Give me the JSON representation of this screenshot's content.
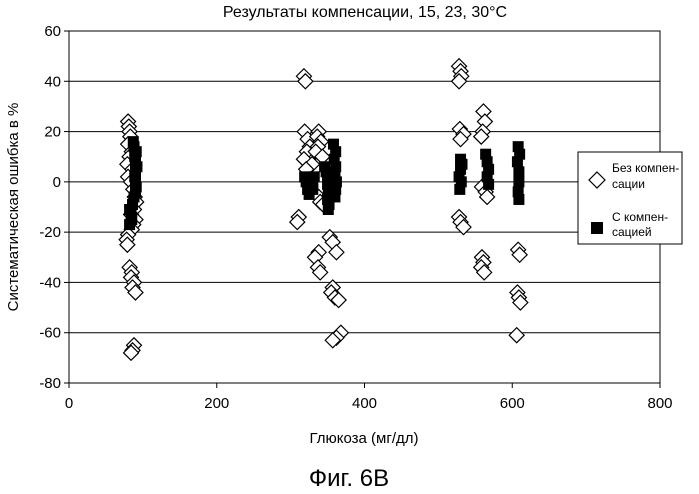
{
  "figure_label": "Фиг. 6В",
  "chart_data": {
    "type": "scatter",
    "title": "Результаты компенсации, 15, 23, 30°C",
    "xlabel": "Глюкоза (мг/дл)",
    "ylabel": "Систематическая ошибка в %",
    "xlim": [
      0,
      800
    ],
    "ylim": [
      -80,
      60
    ],
    "xticks": [
      "0",
      "200",
      "400",
      "600",
      "800"
    ],
    "yticks": [
      "60",
      "40",
      "20",
      "0",
      "-20",
      "-40",
      "-60",
      "-80"
    ],
    "grid": "horizontal",
    "legend_position": "right",
    "legend": {
      "uncompensated_line1": "Без компен-",
      "uncompensated_line2": "сации",
      "compensated_line1": "С компен-",
      "compensated_line2": "сацией"
    },
    "series": [
      {
        "marker": "open-diamond",
        "color": "#000000",
        "points": [
          [
            80,
            24
          ],
          [
            81,
            22
          ],
          [
            82,
            20
          ],
          [
            83,
            18
          ],
          [
            80,
            15
          ],
          [
            85,
            12
          ],
          [
            82,
            10
          ],
          [
            79,
            7
          ],
          [
            86,
            5
          ],
          [
            80,
            2
          ],
          [
            84,
            0
          ],
          [
            87,
            -3
          ],
          [
            89,
            -6
          ],
          [
            91,
            -8
          ],
          [
            88,
            -11
          ],
          [
            84,
            -13
          ],
          [
            90,
            -15
          ],
          [
            87,
            -17
          ],
          [
            85,
            -19
          ],
          [
            80,
            -21
          ],
          [
            78,
            -23
          ],
          [
            79,
            -25
          ],
          [
            82,
            -34
          ],
          [
            85,
            -36
          ],
          [
            84,
            -38
          ],
          [
            88,
            -40
          ],
          [
            86,
            -42
          ],
          [
            90,
            -44
          ],
          [
            88,
            -65
          ],
          [
            86,
            -67
          ],
          [
            84,
            -68
          ],
          [
            318,
            42
          ],
          [
            320,
            40
          ],
          [
            319,
            20
          ],
          [
            323,
            17
          ],
          [
            326,
            14
          ],
          [
            322,
            12
          ],
          [
            318,
            9
          ],
          [
            329,
            7
          ],
          [
            321,
            5
          ],
          [
            311,
            -14
          ],
          [
            309,
            -16
          ],
          [
            338,
            20
          ],
          [
            336,
            18
          ],
          [
            341,
            16
          ],
          [
            337,
            14
          ],
          [
            334,
            12
          ],
          [
            343,
            10
          ],
          [
            338,
            -6
          ],
          [
            340,
            -8
          ],
          [
            344,
            -9
          ],
          [
            338,
            -28
          ],
          [
            333,
            -30
          ],
          [
            337,
            -34
          ],
          [
            340,
            -36
          ],
          [
            353,
            -22
          ],
          [
            357,
            -24
          ],
          [
            362,
            -28
          ],
          [
            357,
            -42
          ],
          [
            355,
            -44
          ],
          [
            360,
            -46
          ],
          [
            365,
            -47
          ],
          [
            368,
            -60
          ],
          [
            362,
            -62
          ],
          [
            357,
            -63
          ],
          [
            528,
            46
          ],
          [
            530,
            44
          ],
          [
            531,
            42
          ],
          [
            528,
            40
          ],
          [
            529,
            21
          ],
          [
            534,
            19
          ],
          [
            530,
            17
          ],
          [
            528,
            -14
          ],
          [
            530,
            -16
          ],
          [
            534,
            -18
          ],
          [
            561,
            28
          ],
          [
            563,
            24
          ],
          [
            560,
            20
          ],
          [
            558,
            18
          ],
          [
            559,
            -2
          ],
          [
            564,
            -4
          ],
          [
            566,
            -6
          ],
          [
            559,
            -30
          ],
          [
            561,
            -32
          ],
          [
            558,
            -34
          ],
          [
            562,
            -36
          ],
          [
            608,
            -27
          ],
          [
            610,
            -29
          ],
          [
            607,
            -44
          ],
          [
            609,
            -46
          ],
          [
            611,
            -48
          ],
          [
            606,
            -61
          ]
        ]
      },
      {
        "marker": "filled-square",
        "color": "#000000",
        "points": [
          [
            87,
            16
          ],
          [
            88,
            14
          ],
          [
            91,
            12
          ],
          [
            89,
            10
          ],
          [
            90,
            8
          ],
          [
            92,
            6
          ],
          [
            90,
            4
          ],
          [
            89,
            2
          ],
          [
            90,
            0
          ],
          [
            91,
            -2
          ],
          [
            90,
            -4
          ],
          [
            88,
            -6
          ],
          [
            86,
            -9
          ],
          [
            82,
            -11
          ],
          [
            84,
            -13
          ],
          [
            85,
            -15
          ],
          [
            82,
            -17
          ],
          [
            319,
            2
          ],
          [
            321,
            0
          ],
          [
            323,
            -3
          ],
          [
            325,
            -5
          ],
          [
            330,
            -1
          ],
          [
            332,
            2
          ],
          [
            330,
            -3
          ],
          [
            346,
            6
          ],
          [
            348,
            4
          ],
          [
            350,
            2
          ],
          [
            350,
            -1
          ],
          [
            352,
            -3
          ],
          [
            351,
            -5
          ],
          [
            350,
            -7
          ],
          [
            352,
            -9
          ],
          [
            351,
            -11
          ],
          [
            358,
            15
          ],
          [
            361,
            12
          ],
          [
            359,
            9
          ],
          [
            361,
            6
          ],
          [
            360,
            3
          ],
          [
            362,
            0
          ],
          [
            361,
            -3
          ],
          [
            360,
            -6
          ],
          [
            530,
            9
          ],
          [
            532,
            7
          ],
          [
            530,
            5
          ],
          [
            528,
            2
          ],
          [
            531,
            0
          ],
          [
            529,
            -3
          ],
          [
            564,
            11
          ],
          [
            566,
            8
          ],
          [
            568,
            5
          ],
          [
            566,
            2
          ],
          [
            568,
            -1
          ],
          [
            608,
            14
          ],
          [
            610,
            11
          ],
          [
            607,
            8
          ],
          [
            609,
            4
          ],
          [
            609,
            0
          ],
          [
            608,
            -4
          ],
          [
            609,
            -7
          ]
        ]
      }
    ]
  }
}
